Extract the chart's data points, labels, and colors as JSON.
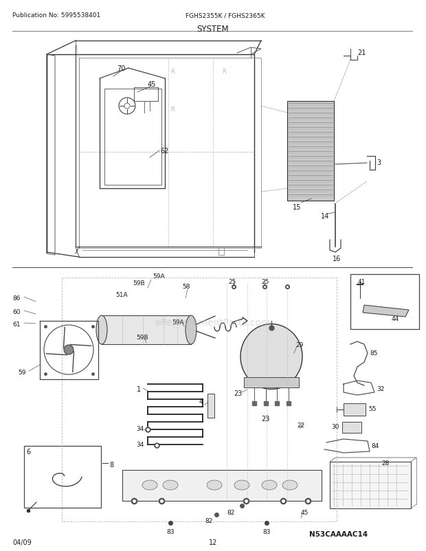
{
  "title": "SYSTEM",
  "header_left": "Publication No: 5995538401",
  "header_center": "FGHS2355K / FGHS2365K",
  "footer_left": "04/09",
  "footer_center": "12",
  "watermark": "eReplacementParts.com",
  "diagram_code": "N53CAAAAC14",
  "bg_color": "#ffffff",
  "text_color": "#1a1a1a",
  "line_color": "#333333",
  "gray_color": "#888888",
  "light_gray": "#bbbbbb"
}
